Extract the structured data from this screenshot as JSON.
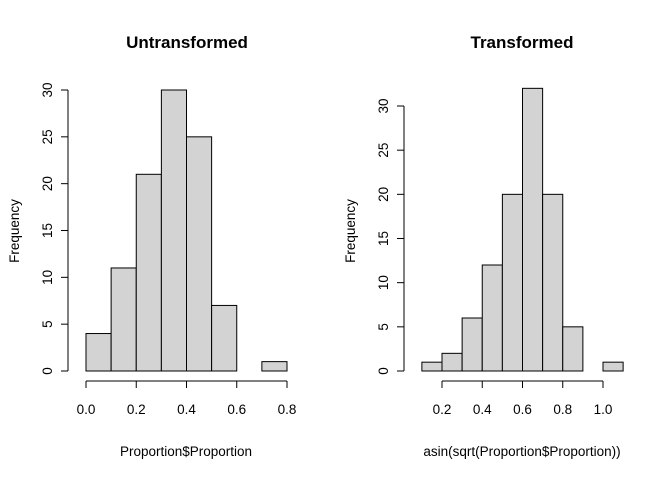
{
  "chart_data": [
    {
      "type": "bar",
      "title": "Untransformed",
      "xlabel": "Proportion$Proportion",
      "ylabel": "Frequency",
      "bin_edges": [
        0.0,
        0.1,
        0.2,
        0.3,
        0.4,
        0.5,
        0.6,
        0.7,
        0.8
      ],
      "values": [
        4,
        11,
        21,
        30,
        25,
        7,
        0,
        1
      ],
      "xticks": [
        "0.0",
        "0.2",
        "0.4",
        "0.6",
        "0.8"
      ],
      "xtick_values": [
        0.0,
        0.2,
        0.4,
        0.6,
        0.8
      ],
      "yticks": [
        "0",
        "5",
        "10",
        "15",
        "20",
        "25",
        "30"
      ],
      "ytick_values": [
        0,
        5,
        10,
        15,
        20,
        25,
        30
      ],
      "xlim": [
        0.0,
        0.8
      ],
      "ylim": [
        0,
        30
      ],
      "grid": false,
      "colors": {
        "bar_fill": "#d3d3d3",
        "bar_stroke": "#000000"
      }
    },
    {
      "type": "bar",
      "title": "Transformed",
      "xlabel": "asin(sqrt(Proportion$Proportion))",
      "ylabel": "Frequency",
      "bin_edges": [
        0.1,
        0.2,
        0.3,
        0.4,
        0.5,
        0.6,
        0.7,
        0.8,
        0.9,
        1.0,
        1.1
      ],
      "values": [
        1,
        2,
        6,
        12,
        20,
        32,
        20,
        5,
        0,
        1
      ],
      "xticks": [
        "0.2",
        "0.4",
        "0.6",
        "0.8",
        "1.0"
      ],
      "xtick_values": [
        0.2,
        0.4,
        0.6,
        0.8,
        1.0
      ],
      "yticks": [
        "0",
        "5",
        "10",
        "15",
        "20",
        "25",
        "30"
      ],
      "ytick_values": [
        0,
        5,
        10,
        15,
        20,
        25,
        30
      ],
      "xlim": [
        0.1,
        1.1
      ],
      "ylim": [
        0,
        32
      ],
      "grid": false,
      "colors": {
        "bar_fill": "#d3d3d3",
        "bar_stroke": "#000000"
      }
    }
  ]
}
